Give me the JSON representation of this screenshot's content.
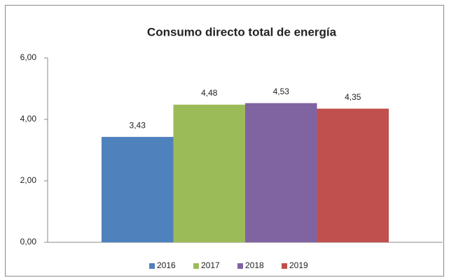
{
  "chart_data": {
    "type": "bar",
    "title": "Consumo directo total de energía",
    "categories": [
      null
    ],
    "series": [
      {
        "name": "2016",
        "color": "#4f81bd",
        "values": [
          3.43
        ],
        "value_labels": [
          "3,43"
        ]
      },
      {
        "name": "2017",
        "color": "#9bbb59",
        "values": [
          4.48
        ],
        "value_labels": [
          "4,48"
        ]
      },
      {
        "name": "2018",
        "color": "#8064a2",
        "values": [
          4.53
        ],
        "value_labels": [
          "4,53"
        ]
      },
      {
        "name": "2019",
        "color": "#c0504d",
        "values": [
          4.35
        ],
        "value_labels": [
          "4,35"
        ]
      }
    ],
    "ylim": [
      0,
      6
    ],
    "yticks": [
      {
        "value": 0,
        "label": "0,00"
      },
      {
        "value": 2,
        "label": "2,00"
      },
      {
        "value": 4,
        "label": "4,00"
      },
      {
        "value": 6,
        "label": "6,00"
      }
    ],
    "grid": false,
    "legend": "bottom"
  }
}
